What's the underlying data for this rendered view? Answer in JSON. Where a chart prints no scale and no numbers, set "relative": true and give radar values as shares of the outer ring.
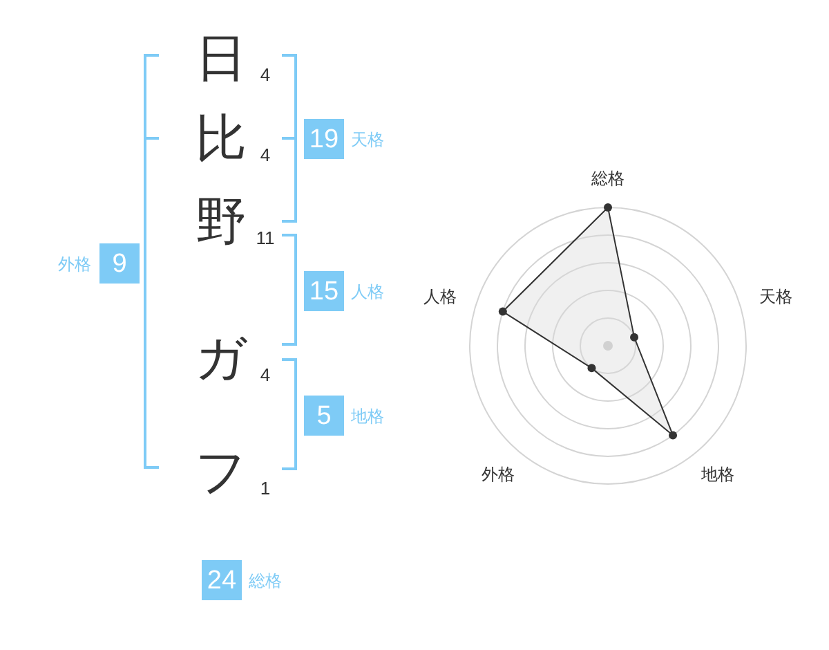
{
  "chart_data": [
    {
      "type": "other",
      "categories": [
        "日",
        "比",
        "野",
        "ガ",
        "フ"
      ],
      "values": [
        4,
        4,
        11,
        4,
        1
      ],
      "data_labels": true
    },
    {
      "type": "other",
      "categories": [
        "天格",
        "人格",
        "地格",
        "外格",
        "総格"
      ],
      "values": [
        19,
        15,
        5,
        9,
        24
      ],
      "colors": [
        "#7ecbf6",
        "#7ecbf6",
        "#7ecbf6",
        "#7ecbf6",
        "#7ecbf6"
      ],
      "data_labels": true
    },
    {
      "type": "radar",
      "categories": [
        "総格",
        "天格",
        "地格",
        "外格",
        "人格"
      ],
      "series": [
        {
          "color": "#333333",
          "values": [
            1,
            0.2,
            0.8,
            0.2,
            0.8
          ]
        }
      ],
      "relative": true,
      "grid": true,
      "marker": "circle"
    }
  ]
}
